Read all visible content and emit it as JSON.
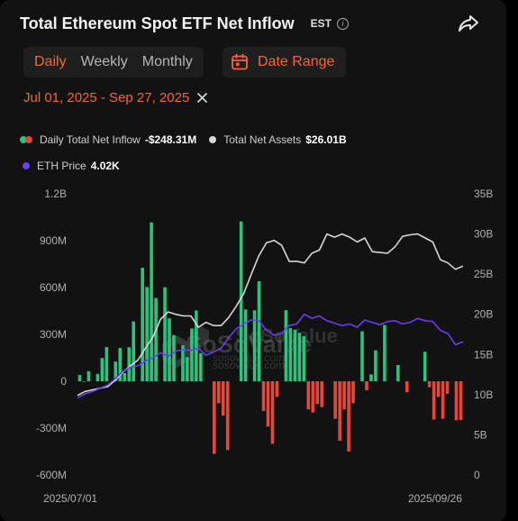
{
  "header": {
    "title": "Total Ethereum Spot ETF Net Inflow",
    "timezone": "EST",
    "info_icon": "info-icon",
    "share_icon": "share-icon"
  },
  "tabs": [
    {
      "label": "Daily",
      "active": true
    },
    {
      "label": "Weekly",
      "active": false
    },
    {
      "label": "Monthly",
      "active": false
    }
  ],
  "date_range_button": {
    "label": "Date Range",
    "icon": "calendar-icon"
  },
  "selected_range": {
    "text": "Jul 01, 2025 - Sep 27, 2025",
    "clear_icon": "close-icon"
  },
  "legend": {
    "daily": {
      "label": "Daily Total Net Inflow",
      "value": "-$248.31M"
    },
    "assets": {
      "label": "Total Net Assets",
      "value": "$26.01B"
    },
    "price": {
      "label": "ETH Price",
      "value": "4.02K"
    }
  },
  "colors": {
    "positive": "#2ec27e",
    "negative": "#e5483b",
    "assets": "#d6d6d6",
    "price": "#6a3df0",
    "accent": "#f0683a"
  },
  "watermark": {
    "brand": "SoSoValue",
    "site": "sosovalue.com"
  },
  "chart_data": {
    "type": "bar",
    "x_start": "2025/07/01",
    "x_end": "2025/09/26",
    "left_axis": {
      "ticks": [
        "1.2B",
        "900M",
        "600M",
        "300M",
        "0",
        "-300M",
        "-600M"
      ],
      "range": [
        -600,
        1200
      ],
      "unit": "M"
    },
    "right_axis": {
      "ticks": [
        "35B",
        "30B",
        "25B",
        "20B",
        "15B",
        "10B",
        "5B",
        "0"
      ],
      "range": [
        0,
        35
      ],
      "unit": "B"
    },
    "bars": [
      40,
      -1,
      64,
      0,
      47,
      149,
      219,
      0,
      126,
      213,
      52,
      218,
      383,
      0,
      727,
      603,
      1017,
      533,
      0,
      602,
      403,
      296,
      0,
      230,
      154,
      338,
      453,
      180,
      0,
      0,
      -465,
      -140,
      -220,
      -440,
      0,
      0,
      1023,
      460,
      0,
      454,
      640,
      -190,
      -290,
      -400,
      -100,
      0,
      455,
      340,
      330,
      310,
      290,
      -180,
      -200,
      -145,
      -165,
      0,
      0,
      -240,
      -380,
      -180,
      -450,
      -140,
      0,
      320,
      -58,
      44,
      198,
      0,
      360,
      0,
      0,
      104,
      0,
      -70,
      0,
      0,
      0,
      189,
      -38,
      -245,
      -100,
      -240,
      -80,
      0,
      -250,
      -248
    ],
    "total_net_assets": [
      9.9,
      10.4,
      10.6,
      10.8,
      11.0,
      11.8,
      12.8,
      13.6,
      14.3,
      15.8,
      17.2,
      19.4,
      20.3,
      20.0,
      19.8,
      19.8,
      18.4,
      19.0,
      18.6,
      18.6,
      19.6,
      21.0,
      22.6,
      25.0,
      27.3,
      28.9,
      29.2,
      28.6,
      26.6,
      26.6,
      26.4,
      27.6,
      28.0,
      30.0,
      29.6,
      30.0,
      29.6,
      29.0,
      29.5,
      27.8,
      27.7,
      27.6,
      28.4,
      29.7,
      29.9,
      30.0,
      29.5,
      29.0,
      26.8,
      26.4,
      25.6,
      26.0
    ],
    "eth_price": [
      9.6,
      10.1,
      10.4,
      10.8,
      11.2,
      12.0,
      12.9,
      13.4,
      13.6,
      14.2,
      14.6,
      15.2,
      14.8,
      15.4,
      15.6,
      15.5,
      15.8,
      14.9,
      15.3,
      15.8,
      17.1,
      18.2,
      18.8,
      19.3,
      19.2,
      18.0,
      17.4,
      17.6,
      18.6,
      18.8,
      20.0,
      19.5,
      19.8,
      19.2,
      18.9,
      18.6,
      18.8,
      18.4,
      19.3,
      19.0,
      18.7,
      19.1,
      19.2,
      18.8,
      19.0,
      19.5,
      19.2,
      19.1,
      18.0,
      17.6,
      16.2,
      16.6
    ]
  }
}
